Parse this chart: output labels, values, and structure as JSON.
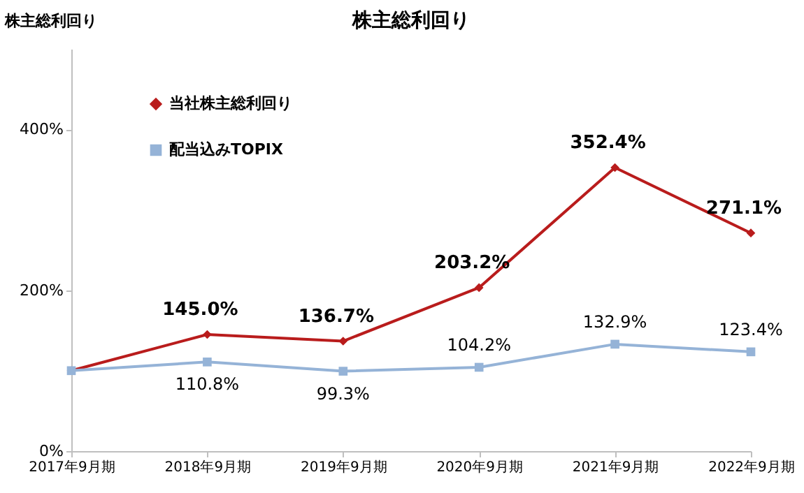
{
  "chart_data": {
    "type": "line",
    "title": "株主総利回り",
    "ylabel": "株主総利回り",
    "categories": [
      "2017年9月期",
      "2018年9月期",
      "2019年9月期",
      "2020年9月期",
      "2021年9月期",
      "2022年9月期"
    ],
    "series": [
      {
        "name": "当社株主総利回り",
        "color": "#b91c1c",
        "marker": "diamond",
        "values": [
          100,
          145.0,
          136.7,
          203.2,
          352.4,
          271.1
        ],
        "value_labels": [
          null,
          "145.0%",
          "136.7%",
          "203.2%",
          "352.4%",
          "271.1%"
        ]
      },
      {
        "name": "配当込みTOPIX",
        "color": "#95b3d7",
        "marker": "square",
        "values": [
          100,
          110.8,
          99.3,
          104.2,
          132.9,
          123.4
        ],
        "value_labels": [
          null,
          "110.8%",
          "99.3%",
          "104.2%",
          "132.9%",
          "123.4%"
        ]
      }
    ],
    "ylim": [
      0,
      500
    ],
    "yticks": [
      {
        "value": 0,
        "label": "0%"
      },
      {
        "value": 200,
        "label": "200%"
      },
      {
        "value": 400,
        "label": "400%"
      }
    ],
    "grid": false,
    "legend": "top left"
  }
}
